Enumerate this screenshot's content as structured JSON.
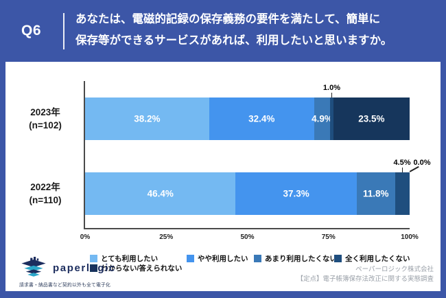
{
  "header": {
    "q_label": "Q6",
    "question_lines": [
      "あなたは、電磁的記録の保存義務の要件を満たして、簡単に",
      "保存等ができるサービスがあれば、利用したいと思いますか。"
    ]
  },
  "chart_data": {
    "type": "bar",
    "orientation": "horizontal",
    "stacked": true,
    "unit": "%",
    "categories": [
      "2023年",
      "2022年"
    ],
    "category_sublabels": [
      "(n=102)",
      "(n=110)"
    ],
    "series": [
      {
        "name": "とても利用したい",
        "color": "#74B9F2",
        "values": [
          38.2,
          46.4
        ]
      },
      {
        "name": "やや利用したい",
        "color": "#4494EE",
        "values": [
          32.4,
          37.3
        ]
      },
      {
        "name": "あまり利用したくない",
        "color": "#3A79B7",
        "values": [
          4.9,
          11.8
        ]
      },
      {
        "name": "全く利用したくない",
        "color": "#1F4E7E",
        "values": [
          1.0,
          4.5
        ]
      },
      {
        "name": "わからない/答えられない",
        "color": "#16365C",
        "values": [
          23.5,
          0.0
        ]
      }
    ],
    "x_ticks": [
      "0%",
      "25%",
      "50%",
      "75%",
      "100%"
    ],
    "xlim": [
      0,
      100
    ],
    "grid": false,
    "legend_position": "bottom",
    "value_labels": "inside, small values called out above bar"
  },
  "footer": {
    "logo_text": "paperlogic",
    "logo_tagline": "請求書・納品書など契約以外も全て電子化",
    "company": "ペーパーロジック株式会社",
    "survey_title": "【定点】電子帳簿保存法改正に関する実態調査"
  },
  "colors": {
    "frame_blue": "#3C56A7",
    "axis": "#4A4A4A",
    "footer_gray": "#9AA0A8",
    "logo_navy": "#1C2D5E",
    "logo_teal": "#2BA6C9"
  }
}
